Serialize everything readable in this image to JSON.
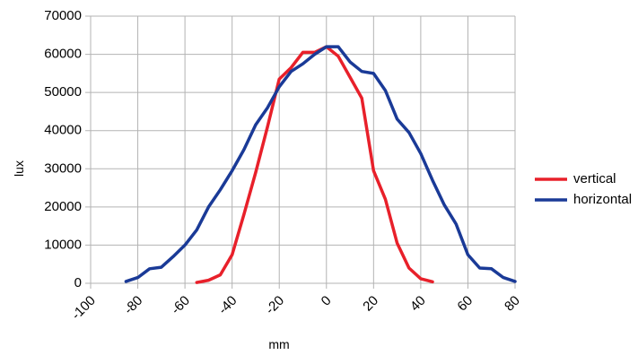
{
  "chart_data": {
    "type": "line",
    "xlabel": "mm",
    "ylabel": "lux",
    "xlim": [
      -100,
      80
    ],
    "ylim": [
      0,
      70000
    ],
    "x_ticks": [
      -100,
      -80,
      -60,
      -40,
      -20,
      0,
      20,
      40,
      60,
      80
    ],
    "y_ticks": [
      0,
      10000,
      20000,
      30000,
      40000,
      50000,
      60000,
      70000
    ],
    "grid": true,
    "legend_position": "right",
    "series": [
      {
        "name": "vertical",
        "color": "#e8202a",
        "x": [
          -55,
          -50,
          -45,
          -40,
          -35,
          -30,
          -25,
          -20,
          -15,
          -10,
          -5,
          0,
          5,
          10,
          15,
          20,
          25,
          30,
          35,
          40,
          45
        ],
        "y": [
          200,
          800,
          2200,
          7500,
          18000,
          29000,
          41000,
          53500,
          56500,
          60500,
          60500,
          62000,
          59500,
          54000,
          48500,
          29500,
          22000,
          10500,
          4000,
          1200,
          400
        ]
      },
      {
        "name": "horizontal",
        "color": "#1a3a97",
        "x": [
          -85,
          -80,
          -75,
          -70,
          -65,
          -60,
          -55,
          -50,
          -45,
          -40,
          -35,
          -30,
          -25,
          -20,
          -15,
          -10,
          -5,
          0,
          5,
          10,
          15,
          20,
          25,
          30,
          35,
          40,
          45,
          50,
          55,
          60,
          65,
          70,
          75,
          80
        ],
        "y": [
          500,
          1500,
          3800,
          4200,
          7000,
          10000,
          14000,
          20000,
          24500,
          29500,
          35000,
          41500,
          46000,
          51500,
          55500,
          57500,
          60000,
          62000,
          62000,
          58000,
          55500,
          55000,
          50500,
          43000,
          39500,
          34000,
          27000,
          20500,
          15500,
          7500,
          4000,
          3800,
          1500,
          500
        ]
      }
    ]
  }
}
